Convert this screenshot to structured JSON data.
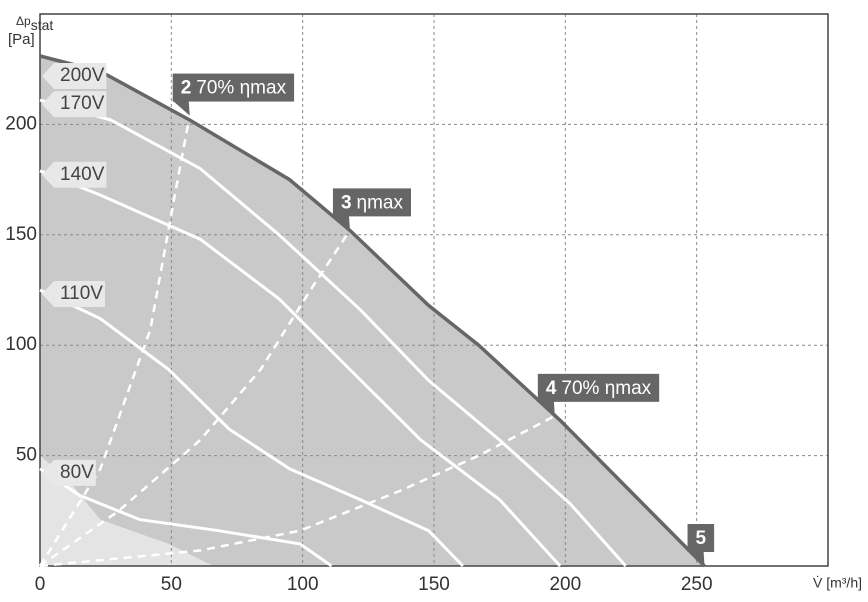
{
  "chart_data": {
    "type": "line",
    "xlabel": "V̇ [m³/h]",
    "ylabel": "Δp",
    "ylabel_subscript": "stat",
    "yunit": "[Pa]",
    "xlim": [
      0,
      300
    ],
    "ylim": [
      0,
      250
    ],
    "xticks": [
      0,
      50,
      100,
      150,
      200,
      250
    ],
    "yticks": [
      50,
      100,
      150,
      200
    ],
    "grid": true,
    "series": [
      {
        "name": "200V",
        "style": "outer",
        "color": "#666666",
        "fill": "#c9c9c9",
        "x": [
          0,
          23,
          57,
          95,
          118,
          148,
          167,
          198,
          228,
          253
        ],
        "values": [
          231,
          224,
          202,
          175,
          152,
          118,
          100,
          66,
          30,
          0
        ]
      },
      {
        "style": "region",
        "color": "#e4e4e4",
        "x": [
          0,
          10,
          23,
          49,
          66
        ],
        "values": [
          50,
          40,
          21,
          10,
          0
        ]
      },
      {
        "name": "170V",
        "style": "voltage",
        "color": "#ffffff",
        "x": [
          0,
          27,
          61,
          91,
          122,
          148,
          175,
          202,
          223
        ],
        "values": [
          211,
          202,
          180,
          150,
          116,
          84,
          57,
          28,
          0
        ]
      },
      {
        "name": "140V",
        "style": "voltage",
        "color": "#ffffff",
        "x": [
          0,
          23,
          61,
          91,
          118,
          145,
          175,
          198
        ],
        "values": [
          179,
          168,
          148,
          121,
          89,
          57,
          30,
          0
        ]
      },
      {
        "name": "110V",
        "style": "voltage",
        "color": "#ffffff",
        "x": [
          0,
          23,
          49,
          72,
          95,
          122,
          148,
          161
        ],
        "values": [
          125,
          112,
          89,
          62,
          44,
          30,
          16,
          0
        ]
      },
      {
        "name": "80V",
        "style": "voltage",
        "color": "#ffffff",
        "x": [
          0,
          15,
          38,
          68,
          99,
          111
        ],
        "values": [
          44,
          32,
          21,
          16,
          10,
          0
        ]
      },
      {
        "style": "efficiency",
        "color": "#ffffff",
        "x": [
          0,
          23,
          42,
          51,
          57
        ],
        "values": [
          0,
          44,
          107,
          166,
          204
        ]
      },
      {
        "style": "efficiency",
        "color": "#ffffff",
        "x": [
          0,
          30,
          61,
          84,
          103,
          118
        ],
        "values": [
          0,
          25,
          57,
          89,
          125,
          152
        ]
      },
      {
        "style": "efficiency",
        "color": "#ffffff",
        "x": [
          0,
          61,
          99,
          137,
          167,
          196
        ],
        "values": [
          0,
          7,
          16,
          34,
          50,
          68
        ]
      }
    ],
    "annotations": [
      {
        "number": "2",
        "text": "70% ηmax",
        "x": 57,
        "y": 204
      },
      {
        "number": "3",
        "text": "ηmax",
        "x": 118,
        "y": 152
      },
      {
        "number": "4",
        "text": "70% ηmax",
        "x": 196,
        "y": 68
      },
      {
        "number": "5",
        "x": 253,
        "y": 0
      }
    ]
  }
}
